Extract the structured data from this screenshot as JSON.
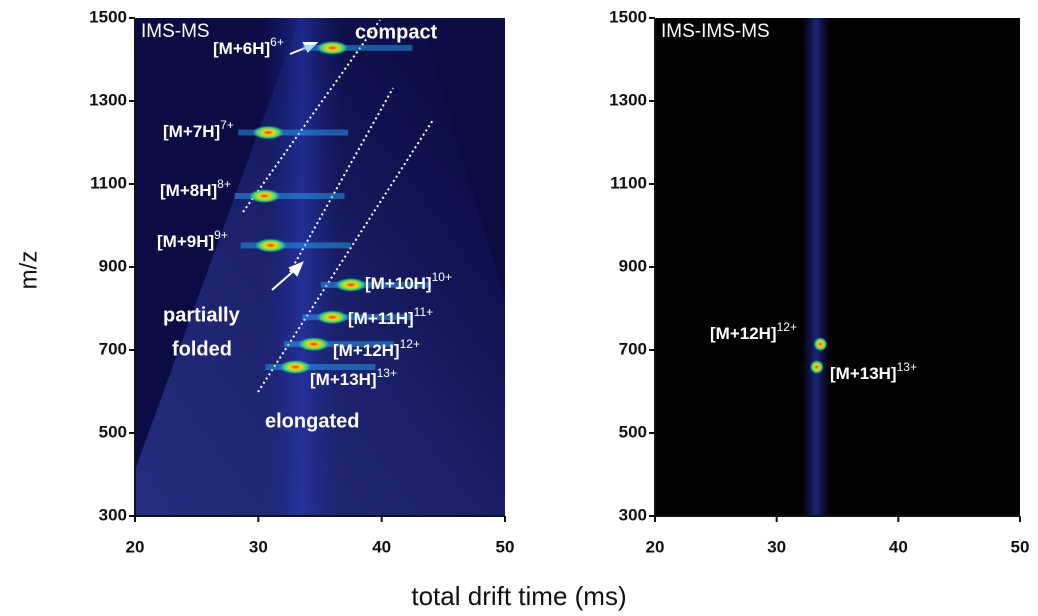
{
  "x_label": "total drift time (ms)",
  "y_label": "m/z",
  "chart_data": [
    {
      "type": "heatmap",
      "title": "IMS-MS",
      "xlim": [
        20,
        50
      ],
      "ylim": [
        300,
        1500
      ],
      "xticks": [
        20,
        30,
        40,
        50
      ],
      "yticks": [
        300,
        500,
        700,
        900,
        1100,
        1300,
        1500
      ],
      "ions": [
        {
          "label": "[M+6H]",
          "charge": "6+",
          "mz": 1428,
          "drift": 36
        },
        {
          "label": "[M+7H]",
          "charge": "7+",
          "mz": 1224,
          "drift": 30.8
        },
        {
          "label": "[M+8H]",
          "charge": "8+",
          "mz": 1071,
          "drift": 30.5
        },
        {
          "label": "[M+9H]",
          "charge": "9+",
          "mz": 952,
          "drift": 31
        },
        {
          "label": "[M+10H]",
          "charge": "10+",
          "mz": 857,
          "drift": 37.5
        },
        {
          "label": "[M+11H]",
          "charge": "11+",
          "mz": 779,
          "drift": 36
        },
        {
          "label": "[M+12H]",
          "charge": "12+",
          "mz": 714,
          "drift": 34.5
        },
        {
          "label": "[M+13H]",
          "charge": "13+",
          "mz": 659,
          "drift": 33
        }
      ],
      "annotations": [
        "compact",
        "partially",
        "folded",
        "elongated"
      ]
    },
    {
      "type": "heatmap",
      "title": "IMS-IMS-MS",
      "xlim": [
        20,
        50
      ],
      "ylim": [
        300,
        1500
      ],
      "xticks": [
        20,
        30,
        40,
        50
      ],
      "yticks": [
        300,
        500,
        700,
        900,
        1100,
        1300,
        1500
      ],
      "ions": [
        {
          "label": "[M+12H]",
          "charge": "12+",
          "mz": 714,
          "drift": 33.6
        },
        {
          "label": "[M+13H]",
          "charge": "13+",
          "mz": 659,
          "drift": 33.3
        }
      ],
      "annotations": []
    }
  ]
}
